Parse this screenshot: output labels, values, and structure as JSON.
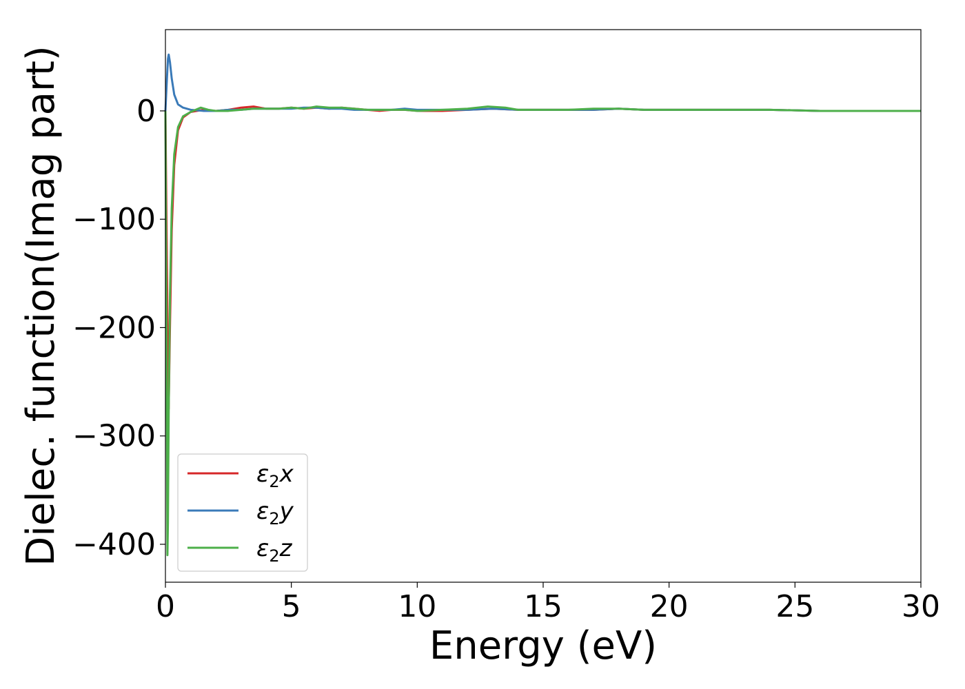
{
  "chart_data": {
    "type": "line",
    "title": "",
    "xlabel": "Energy (eV)",
    "ylabel": "Dielec. function(Imag part)",
    "xlim": [
      0,
      30
    ],
    "ylim": [
      -435,
      75
    ],
    "xticks": [
      0,
      5,
      10,
      15,
      20,
      25,
      30
    ],
    "yticks": [
      0,
      -100,
      -200,
      -300,
      -400
    ],
    "ytick_labels": [
      "0",
      "−100",
      "−200",
      "−300",
      "−400"
    ],
    "grid": false,
    "legend_position": "lower-left",
    "series": [
      {
        "name": "ε₂x",
        "legend": {
          "symbol": "ε",
          "sub": "2",
          "suffix": "x"
        },
        "color": "#d62728",
        "x": [
          0.0,
          0.05,
          0.1,
          0.13,
          0.18,
          0.25,
          0.35,
          0.5,
          0.7,
          1.0,
          1.5,
          2.0,
          2.5,
          3.0,
          3.5,
          4.0,
          4.5,
          5.0,
          5.5,
          6.0,
          6.5,
          7.0,
          7.5,
          8.0,
          8.5,
          9.0,
          9.5,
          10.0,
          11.0,
          12.0,
          13.0,
          14.0,
          15.0,
          16.0,
          17.0,
          18.0,
          19.0,
          20.0,
          22.0,
          24.0,
          26.0,
          28.0,
          30.0
        ],
        "y": [
          0,
          -120,
          -240,
          -275,
          -200,
          -110,
          -50,
          -18,
          -6,
          -1,
          1,
          0,
          1,
          3,
          4,
          2,
          2,
          3,
          2,
          3,
          2,
          3,
          2,
          1,
          0,
          1,
          1,
          0,
          0,
          1,
          2,
          1,
          1,
          1,
          1,
          2,
          1,
          1,
          1,
          1,
          0,
          0,
          0
        ]
      },
      {
        "name": "ε₂y",
        "legend": {
          "symbol": "ε",
          "sub": "2",
          "suffix": "y"
        },
        "color": "#3a7ab8",
        "x": [
          0.0,
          0.05,
          0.1,
          0.13,
          0.18,
          0.25,
          0.35,
          0.5,
          0.7,
          1.0,
          1.5,
          2.0,
          2.5,
          3.0,
          3.5,
          4.0,
          4.5,
          5.0,
          5.5,
          6.0,
          6.5,
          7.0,
          7.5,
          8.0,
          8.5,
          9.0,
          9.5,
          10.0,
          11.0,
          12.0,
          13.0,
          14.0,
          15.0,
          16.0,
          17.0,
          18.0,
          19.0,
          20.0,
          22.0,
          24.0,
          26.0,
          28.0,
          30.0
        ],
        "y": [
          0,
          25,
          48,
          52,
          45,
          30,
          15,
          6,
          3,
          1,
          0,
          0,
          1,
          1,
          2,
          2,
          2,
          2,
          3,
          3,
          2,
          2,
          1,
          1,
          1,
          1,
          2,
          1,
          1,
          1,
          2,
          1,
          1,
          1,
          1,
          2,
          1,
          1,
          1,
          1,
          0,
          0,
          0
        ]
      },
      {
        "name": "ε₂z",
        "legend": {
          "symbol": "ε",
          "sub": "2",
          "suffix": "z"
        },
        "color": "#4daf4a",
        "x": [
          0.0,
          0.05,
          0.08,
          0.1,
          0.13,
          0.18,
          0.25,
          0.35,
          0.5,
          0.7,
          1.0,
          1.4,
          1.7,
          2.0,
          2.5,
          3.0,
          3.5,
          4.0,
          4.5,
          5.0,
          5.5,
          6.0,
          6.5,
          7.0,
          7.5,
          8.0,
          8.5,
          9.0,
          9.5,
          10.0,
          11.0,
          12.0,
          12.8,
          13.5,
          14.0,
          15.0,
          16.0,
          17.0,
          18.0,
          19.0,
          20.0,
          22.0,
          24.0,
          26.0,
          28.0,
          30.0
        ],
        "y": [
          0,
          -250,
          -410,
          -380,
          -280,
          -170,
          -90,
          -40,
          -15,
          -5,
          -1,
          3,
          1,
          0,
          0,
          1,
          2,
          2,
          2,
          3,
          2,
          4,
          3,
          3,
          2,
          1,
          1,
          1,
          1,
          0,
          1,
          2,
          4,
          3,
          1,
          1,
          1,
          2,
          2,
          1,
          1,
          1,
          1,
          0,
          0,
          0
        ]
      }
    ]
  }
}
